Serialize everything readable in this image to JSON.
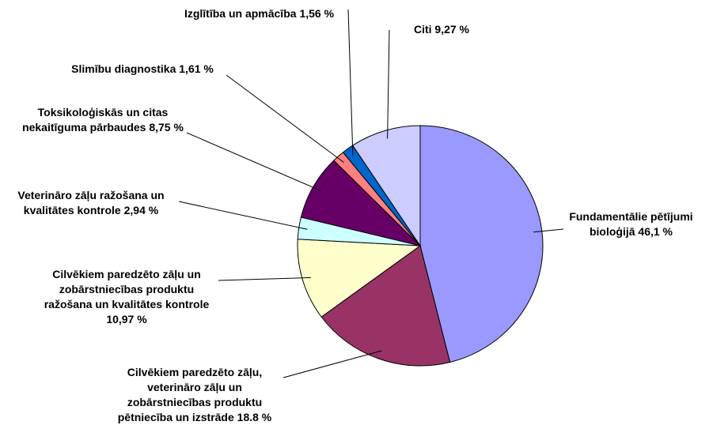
{
  "chart_data": {
    "type": "pie",
    "categories": [
      "Fundamentālie pētījumi bioloģijā",
      "Cilvēkiem paredzēto zāļu, veterināro zāļu un zobārstniecības produktu pētniecība un izstrāde",
      "Cilvēkiem paredzēto zāļu un zobārstniecības produktu ražošana un kvalitātes kontrole",
      "Veterināro zāļu ražošana un kvalitātes kontrole",
      "Toksikoloģiskās un citas nekaitīguma pārbaudes",
      "Slimību diagnostika",
      "Izglītība un apmācība",
      "Citi"
    ],
    "values": [
      46.1,
      18.8,
      10.97,
      2.94,
      8.75,
      1.61,
      1.56,
      9.27
    ],
    "value_labels": [
      "46,1 %",
      "18.8 %",
      "10,97 %",
      "2,94 %",
      "8,75 %",
      "1,61 %",
      "1,56 %",
      "9,27 %"
    ],
    "colors": [
      "#9999ff",
      "#993366",
      "#ffffcc",
      "#ccffff",
      "#660066",
      "#ff8080",
      "#0066cc",
      "#ccccff"
    ]
  }
}
